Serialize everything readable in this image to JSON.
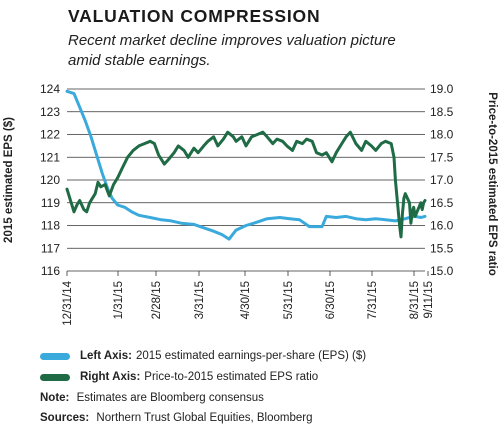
{
  "header": {
    "title": "VALUATION COMPRESSION",
    "subtitle": "Recent market decline improves valuation picture amid stable earnings."
  },
  "legend": {
    "left": {
      "bold": "Left Axis:",
      "text": "2015 estimated earnings-per-share (EPS) ($)",
      "color": "#3aa9dc"
    },
    "right": {
      "bold": "Right Axis:",
      "text": "Price-to-2015 estimated EPS ratio",
      "color": "#1f6b45"
    }
  },
  "footnotes": {
    "note_label": "Note:",
    "note_text": "Estimates are Bloomberg consensus",
    "sources_label": "Sources:",
    "sources_text": "Northern Trust Global Equities, Bloomberg"
  },
  "chart_data": {
    "type": "line",
    "x_tick_labels": [
      "12/31/14",
      "1/31/15",
      "2/28/15",
      "3/31/15",
      "4/30/15",
      "5/31/15",
      "6/30/15",
      "7/31/15",
      "8/31/15",
      "9/11/15"
    ],
    "left_axis": {
      "label": "2015 estimated EPS ($)",
      "min": 116,
      "max": 124,
      "ticks": [
        116,
        117,
        118,
        119,
        120,
        121,
        122,
        123,
        124
      ]
    },
    "right_axis": {
      "label": "Price-to-2015 estimated EPS ratio",
      "min": 15.0,
      "max": 19.0,
      "ticks": [
        "15.0",
        "15.5",
        "16.0",
        "16.5",
        "17.0",
        "17.5",
        "18.0",
        "18.5",
        "19.0"
      ]
    },
    "grid": "horizontal",
    "series": [
      {
        "name": "2015 estimated earnings-per-share (EPS) ($)",
        "axis": "left",
        "color": "#3aa9dc",
        "points": [
          [
            "2014-12-31",
            123.9
          ],
          [
            "2015-01-05",
            123.8
          ],
          [
            "2015-01-09",
            123.2
          ],
          [
            "2015-01-13",
            122.6
          ],
          [
            "2015-01-17",
            121.9
          ],
          [
            "2015-01-21",
            121.1
          ],
          [
            "2015-01-25",
            120.3
          ],
          [
            "2015-01-29",
            119.6
          ],
          [
            "2015-02-01",
            119.2
          ],
          [
            "2015-02-05",
            118.9
          ],
          [
            "2015-02-10",
            118.8
          ],
          [
            "2015-02-15",
            118.6
          ],
          [
            "2015-02-20",
            118.45
          ],
          [
            "2015-02-28",
            118.35
          ],
          [
            "2015-03-08",
            118.25
          ],
          [
            "2015-03-15",
            118.2
          ],
          [
            "2015-03-22",
            118.1
          ],
          [
            "2015-03-31",
            118.05
          ],
          [
            "2015-04-07",
            117.9
          ],
          [
            "2015-04-14",
            117.75
          ],
          [
            "2015-04-20",
            117.6
          ],
          [
            "2015-04-25",
            117.4
          ],
          [
            "2015-04-30",
            117.8
          ],
          [
            "2015-05-07",
            118.0
          ],
          [
            "2015-05-15",
            118.15
          ],
          [
            "2015-05-22",
            118.3
          ],
          [
            "2015-05-31",
            118.35
          ],
          [
            "2015-06-07",
            118.3
          ],
          [
            "2015-06-14",
            118.25
          ],
          [
            "2015-06-21",
            117.95
          ],
          [
            "2015-06-30",
            117.95
          ],
          [
            "2015-07-03",
            118.4
          ],
          [
            "2015-07-10",
            118.35
          ],
          [
            "2015-07-17",
            118.4
          ],
          [
            "2015-07-24",
            118.3
          ],
          [
            "2015-07-31",
            118.25
          ],
          [
            "2015-08-07",
            118.3
          ],
          [
            "2015-08-14",
            118.25
          ],
          [
            "2015-08-21",
            118.2
          ],
          [
            "2015-08-28",
            118.3
          ],
          [
            "2015-08-31",
            118.35
          ],
          [
            "2015-09-04",
            118.4
          ],
          [
            "2015-09-08",
            118.35
          ],
          [
            "2015-09-11",
            118.4
          ]
        ]
      },
      {
        "name": "Price-to-2015 estimated EPS ratio",
        "axis": "right",
        "color": "#1f6b45",
        "points": [
          [
            "2014-12-31",
            16.8
          ],
          [
            "2015-01-02",
            16.6
          ],
          [
            "2015-01-05",
            16.3
          ],
          [
            "2015-01-07",
            16.45
          ],
          [
            "2015-01-09",
            16.55
          ],
          [
            "2015-01-12",
            16.35
          ],
          [
            "2015-01-14",
            16.3
          ],
          [
            "2015-01-16",
            16.5
          ],
          [
            "2015-01-20",
            16.7
          ],
          [
            "2015-01-22",
            16.95
          ],
          [
            "2015-01-24",
            16.85
          ],
          [
            "2015-01-27",
            16.9
          ],
          [
            "2015-01-30",
            16.65
          ],
          [
            "2015-02-02",
            16.9
          ],
          [
            "2015-02-05",
            17.05
          ],
          [
            "2015-02-08",
            17.25
          ],
          [
            "2015-02-12",
            17.5
          ],
          [
            "2015-02-16",
            17.65
          ],
          [
            "2015-02-20",
            17.75
          ],
          [
            "2015-02-24",
            17.8
          ],
          [
            "2015-02-28",
            17.85
          ],
          [
            "2015-03-03",
            17.8
          ],
          [
            "2015-03-06",
            17.55
          ],
          [
            "2015-03-10",
            17.35
          ],
          [
            "2015-03-13",
            17.45
          ],
          [
            "2015-03-17",
            17.6
          ],
          [
            "2015-03-20",
            17.75
          ],
          [
            "2015-03-24",
            17.65
          ],
          [
            "2015-03-27",
            17.5
          ],
          [
            "2015-03-31",
            17.7
          ],
          [
            "2015-04-03",
            17.6
          ],
          [
            "2015-04-07",
            17.75
          ],
          [
            "2015-04-10",
            17.85
          ],
          [
            "2015-04-14",
            17.95
          ],
          [
            "2015-04-17",
            17.75
          ],
          [
            "2015-04-21",
            17.9
          ],
          [
            "2015-04-24",
            18.05
          ],
          [
            "2015-04-28",
            17.95
          ],
          [
            "2015-04-30",
            17.85
          ],
          [
            "2015-05-04",
            17.95
          ],
          [
            "2015-05-07",
            17.75
          ],
          [
            "2015-05-11",
            17.95
          ],
          [
            "2015-05-15",
            18.0
          ],
          [
            "2015-05-19",
            18.05
          ],
          [
            "2015-05-22",
            17.95
          ],
          [
            "2015-05-26",
            17.8
          ],
          [
            "2015-05-29",
            17.9
          ],
          [
            "2015-06-02",
            17.85
          ],
          [
            "2015-06-05",
            17.75
          ],
          [
            "2015-06-09",
            17.65
          ],
          [
            "2015-06-12",
            17.85
          ],
          [
            "2015-06-16",
            17.8
          ],
          [
            "2015-06-19",
            17.9
          ],
          [
            "2015-06-23",
            17.85
          ],
          [
            "2015-06-26",
            17.6
          ],
          [
            "2015-06-30",
            17.55
          ],
          [
            "2015-07-03",
            17.6
          ],
          [
            "2015-07-07",
            17.4
          ],
          [
            "2015-07-10",
            17.6
          ],
          [
            "2015-07-14",
            17.8
          ],
          [
            "2015-07-17",
            17.95
          ],
          [
            "2015-07-20",
            18.05
          ],
          [
            "2015-07-24",
            17.8
          ],
          [
            "2015-07-28",
            17.65
          ],
          [
            "2015-07-31",
            17.85
          ],
          [
            "2015-08-04",
            17.75
          ],
          [
            "2015-08-07",
            17.65
          ],
          [
            "2015-08-11",
            17.8
          ],
          [
            "2015-08-14",
            17.85
          ],
          [
            "2015-08-18",
            17.8
          ],
          [
            "2015-08-20",
            17.5
          ],
          [
            "2015-08-21",
            17.0
          ],
          [
            "2015-08-24",
            16.0
          ],
          [
            "2015-08-25",
            15.75
          ],
          [
            "2015-08-26",
            16.25
          ],
          [
            "2015-08-27",
            16.6
          ],
          [
            "2015-08-28",
            16.7
          ],
          [
            "2015-08-31",
            16.5
          ],
          [
            "2015-09-01",
            16.05
          ],
          [
            "2015-09-02",
            16.3
          ],
          [
            "2015-09-03",
            16.4
          ],
          [
            "2015-09-04",
            16.2
          ],
          [
            "2015-09-08",
            16.5
          ],
          [
            "2015-09-09",
            16.35
          ],
          [
            "2015-09-10",
            16.5
          ],
          [
            "2015-09-11",
            16.55
          ]
        ]
      }
    ]
  }
}
